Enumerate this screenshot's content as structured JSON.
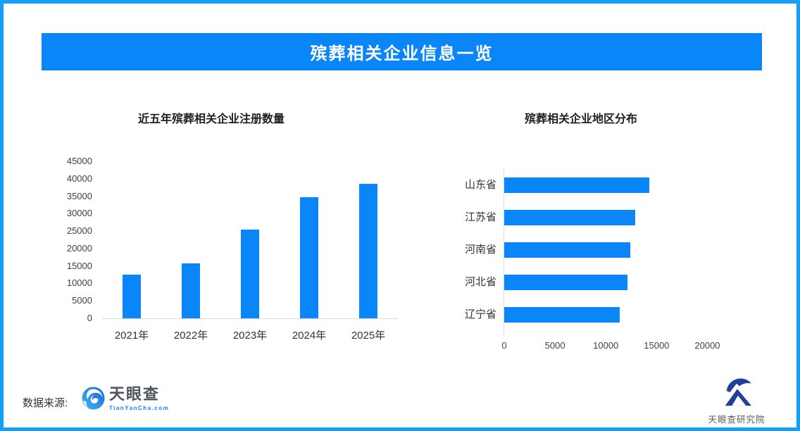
{
  "header": {
    "title": "殡葬相关企业信息一览"
  },
  "colors": {
    "border_blue": "#12a0fe",
    "banner_blue": "#0a86f9",
    "bar_blue": "#0a86f9",
    "axis_line": "#d9d9d9",
    "tick_label": "#404040",
    "category_label": "#333333"
  },
  "chart_data": [
    {
      "type": "bar",
      "title": "近五年殡葬相关企业注册数量",
      "categories": [
        "2021年",
        "2022年",
        "2023年",
        "2024年",
        "2025年"
      ],
      "values": [
        12600,
        15800,
        25500,
        34800,
        38600
      ],
      "xlabel": "",
      "ylabel": "",
      "ylim": [
        0,
        45000
      ],
      "ytick_step": 5000,
      "grid": false,
      "legend": false,
      "bar_color": "#0a86f9"
    },
    {
      "type": "bar-horizontal",
      "title": "殡葬相关企业地区分布",
      "categories": [
        "山东省",
        "江苏省",
        "河南省",
        "河北省",
        "辽宁省"
      ],
      "values": [
        14300,
        12900,
        12400,
        12100,
        11400
      ],
      "xlabel": "",
      "ylabel": "",
      "xlim": [
        0,
        26000
      ],
      "xticks": [
        0,
        5000,
        10000,
        15000,
        20000
      ],
      "grid": false,
      "legend": false,
      "bar_color": "#0a86f9"
    }
  ],
  "footer": {
    "source_label": "数据来源:",
    "brand": {
      "name": "天眼查",
      "domain": "TianYanCha.com"
    },
    "institute": "天眼查研究院"
  }
}
